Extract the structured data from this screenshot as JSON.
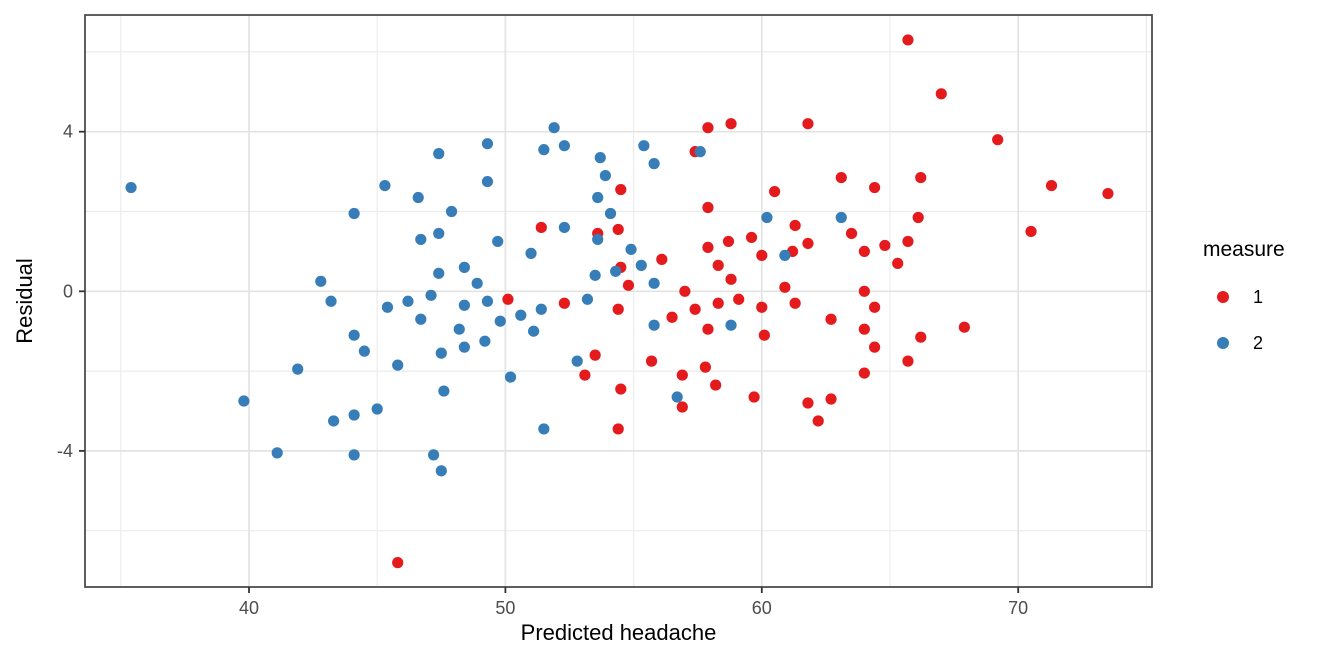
{
  "figure": {
    "background": "#ffffff",
    "panel_border_color": "#4d4d4d",
    "grid_major_color": "#e3e3e3",
    "grid_minor_color": "#ececec",
    "tick_mark_color": "#333333",
    "tick_label_color": "#4d4d4d"
  },
  "chart_data": {
    "type": "scatter",
    "title": "",
    "xlabel": "Predicted headache",
    "ylabel": "Residual",
    "xlim": [
      33.6,
      75.3
    ],
    "ylim": [
      -7.4,
      6.9
    ],
    "grid": true,
    "x_ticks": [
      40,
      50,
      60,
      70
    ],
    "x_tick_labels": [
      "40",
      "50",
      "60",
      "70"
    ],
    "x_minor_ticks": [
      35,
      45,
      55,
      65,
      75
    ],
    "y_ticks": [
      4,
      0,
      -4
    ],
    "y_tick_labels": [
      "4",
      "0",
      "-4"
    ],
    "y_minor_ticks": [
      6,
      2,
      -2,
      -6
    ],
    "legend": {
      "title": "measure",
      "position": "right",
      "items": [
        {
          "label": "1",
          "color": "#E41A1C"
        },
        {
          "label": "2",
          "color": "#377EB8"
        }
      ]
    },
    "series": [
      {
        "name": "1",
        "color": "#E41A1C",
        "points": [
          [
            45.8,
            -6.8
          ],
          [
            50.1,
            -0.2
          ],
          [
            51.4,
            1.6
          ],
          [
            52.3,
            -0.3
          ],
          [
            53.1,
            -2.1
          ],
          [
            53.5,
            -1.6
          ],
          [
            53.6,
            1.45
          ],
          [
            54.4,
            1.55
          ],
          [
            54.5,
            2.55
          ],
          [
            54.5,
            0.6
          ],
          [
            54.5,
            -2.45
          ],
          [
            54.4,
            -0.45
          ],
          [
            54.4,
            -3.45
          ],
          [
            54.8,
            0.15
          ],
          [
            55.7,
            -1.75
          ],
          [
            56.1,
            0.8
          ],
          [
            56.5,
            -0.65
          ],
          [
            56.9,
            -2.1
          ],
          [
            56.9,
            -2.9
          ],
          [
            57.0,
            0.0
          ],
          [
            57.4,
            3.5
          ],
          [
            57.4,
            -0.45
          ],
          [
            57.8,
            -1.9
          ],
          [
            57.9,
            4.1
          ],
          [
            57.9,
            2.1
          ],
          [
            57.9,
            1.1
          ],
          [
            57.9,
            -0.95
          ],
          [
            58.2,
            -2.35
          ],
          [
            58.3,
            0.65
          ],
          [
            58.3,
            -0.3
          ],
          [
            58.7,
            1.25
          ],
          [
            58.8,
            4.2
          ],
          [
            58.8,
            0.3
          ],
          [
            59.1,
            -0.2
          ],
          [
            59.6,
            1.35
          ],
          [
            59.7,
            -2.65
          ],
          [
            60.0,
            0.9
          ],
          [
            60.0,
            -0.4
          ],
          [
            60.1,
            -1.1
          ],
          [
            60.5,
            2.5
          ],
          [
            60.9,
            0.1
          ],
          [
            61.2,
            1.0
          ],
          [
            61.3,
            1.65
          ],
          [
            61.3,
            -0.3
          ],
          [
            61.8,
            4.2
          ],
          [
            61.8,
            1.2
          ],
          [
            61.8,
            -2.8
          ],
          [
            62.2,
            -3.25
          ],
          [
            62.7,
            -0.7
          ],
          [
            62.7,
            -2.7
          ],
          [
            63.1,
            2.85
          ],
          [
            63.5,
            1.45
          ],
          [
            64.0,
            1.0
          ],
          [
            64.0,
            0.0
          ],
          [
            64.0,
            -0.95
          ],
          [
            64.0,
            -2.05
          ],
          [
            64.4,
            2.6
          ],
          [
            64.4,
            -0.4
          ],
          [
            64.4,
            -1.4
          ],
          [
            64.8,
            1.15
          ],
          [
            65.3,
            0.7
          ],
          [
            65.7,
            6.3
          ],
          [
            65.7,
            1.25
          ],
          [
            65.7,
            -1.75
          ],
          [
            66.1,
            1.85
          ],
          [
            66.2,
            2.85
          ],
          [
            66.2,
            -1.15
          ],
          [
            67.0,
            4.95
          ],
          [
            67.9,
            -0.9
          ],
          [
            69.2,
            3.8
          ],
          [
            70.5,
            1.5
          ],
          [
            71.3,
            2.65
          ],
          [
            73.5,
            2.45
          ]
        ]
      },
      {
        "name": "2",
        "color": "#377EB8",
        "points": [
          [
            35.4,
            2.6
          ],
          [
            39.8,
            -2.75
          ],
          [
            41.1,
            -4.05
          ],
          [
            41.9,
            -1.95
          ],
          [
            42.8,
            0.25
          ],
          [
            43.2,
            -0.25
          ],
          [
            43.3,
            -3.25
          ],
          [
            44.1,
            1.95
          ],
          [
            44.1,
            -1.1
          ],
          [
            44.1,
            -3.1
          ],
          [
            44.1,
            -4.1
          ],
          [
            44.5,
            -1.5
          ],
          [
            45.0,
            -2.95
          ],
          [
            45.3,
            2.65
          ],
          [
            45.4,
            -0.4
          ],
          [
            45.8,
            -1.85
          ],
          [
            46.2,
            -0.25
          ],
          [
            46.6,
            2.35
          ],
          [
            46.7,
            1.3
          ],
          [
            46.7,
            -0.7
          ],
          [
            47.1,
            -0.1
          ],
          [
            47.2,
            -4.1
          ],
          [
            47.4,
            3.45
          ],
          [
            47.4,
            1.45
          ],
          [
            47.4,
            0.45
          ],
          [
            47.5,
            -1.55
          ],
          [
            47.5,
            -4.5
          ],
          [
            47.6,
            -2.5
          ],
          [
            47.9,
            2.0
          ],
          [
            48.2,
            -0.95
          ],
          [
            48.4,
            0.6
          ],
          [
            48.4,
            -0.35
          ],
          [
            48.4,
            -1.4
          ],
          [
            48.9,
            0.2
          ],
          [
            49.2,
            -1.25
          ],
          [
            49.3,
            3.7
          ],
          [
            49.3,
            2.75
          ],
          [
            49.3,
            -0.25
          ],
          [
            49.7,
            1.25
          ],
          [
            49.8,
            -0.75
          ],
          [
            50.2,
            -2.15
          ],
          [
            50.6,
            -0.6
          ],
          [
            51.0,
            0.95
          ],
          [
            51.1,
            -1.0
          ],
          [
            51.4,
            -0.45
          ],
          [
            51.5,
            3.55
          ],
          [
            51.5,
            -3.45
          ],
          [
            51.9,
            4.1
          ],
          [
            52.3,
            3.65
          ],
          [
            52.3,
            1.6
          ],
          [
            52.8,
            -1.75
          ],
          [
            53.2,
            -0.2
          ],
          [
            53.5,
            0.4
          ],
          [
            53.6,
            2.35
          ],
          [
            53.6,
            1.3
          ],
          [
            53.7,
            3.35
          ],
          [
            53.9,
            2.9
          ],
          [
            54.1,
            1.95
          ],
          [
            54.3,
            0.5
          ],
          [
            54.9,
            1.05
          ],
          [
            55.3,
            0.65
          ],
          [
            55.4,
            3.65
          ],
          [
            55.8,
            3.2
          ],
          [
            55.8,
            0.2
          ],
          [
            55.8,
            -0.85
          ],
          [
            56.7,
            -2.65
          ],
          [
            57.6,
            3.5
          ],
          [
            58.8,
            -0.85
          ],
          [
            60.2,
            1.85
          ],
          [
            60.9,
            0.9
          ],
          [
            63.1,
            1.85
          ]
        ]
      }
    ]
  }
}
